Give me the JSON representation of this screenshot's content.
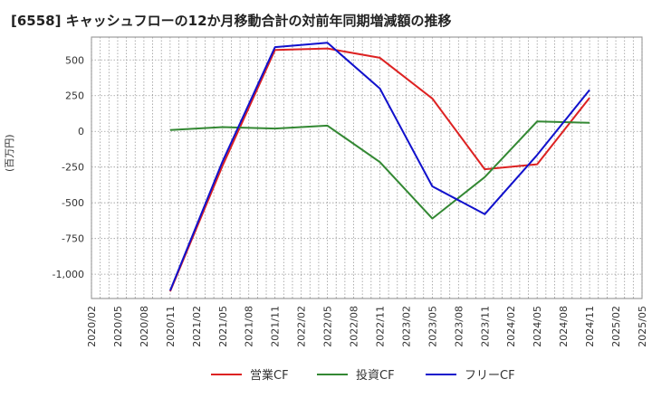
{
  "chart_data": {
    "type": "line",
    "title": "[6558]  キャッシュフローの12か月移動合計の対前年同期増減額の推移",
    "ylabel": "(百万円)",
    "xlabel": "",
    "grid": true,
    "legend": "bottom",
    "ylim": [
      -1170,
      660
    ],
    "yticks": [
      500,
      250,
      0,
      -250,
      -500,
      -750,
      -1000
    ],
    "ytick_labels": [
      "500",
      "250",
      "0",
      "-250",
      "-500",
      "-750",
      "-1,000"
    ],
    "x_categories": [
      "2020/02",
      "2020/05",
      "2020/08",
      "2020/11",
      "2021/02",
      "2021/05",
      "2021/08",
      "2021/11",
      "2022/02",
      "2022/05",
      "2022/08",
      "2022/11",
      "2023/02",
      "2023/05",
      "2023/08",
      "2023/11",
      "2024/02",
      "2024/05",
      "2024/08",
      "2024/11",
      "2025/02",
      "2025/05"
    ],
    "series": [
      {
        "name": "営業CF",
        "color": "#dd2222",
        "x": [
          "2020/11",
          "2021/05",
          "2021/11",
          "2022/05",
          "2022/11",
          "2023/05",
          "2023/11",
          "2024/05",
          "2024/11"
        ],
        "values": [
          -1120,
          -240,
          570,
          580,
          515,
          230,
          -265,
          -230,
          235
        ]
      },
      {
        "name": "投資CF",
        "color": "#338833",
        "x": [
          "2020/11",
          "2021/05",
          "2021/11",
          "2022/05",
          "2022/11",
          "2023/05",
          "2023/11",
          "2024/05",
          "2024/11"
        ],
        "values": [
          10,
          30,
          20,
          40,
          -215,
          -610,
          -320,
          70,
          60
        ]
      },
      {
        "name": "フリーCF",
        "color": "#1111cc",
        "x": [
          "2020/11",
          "2021/05",
          "2021/11",
          "2022/05",
          "2022/11",
          "2023/05",
          "2023/11",
          "2024/05",
          "2024/11"
        ],
        "values": [
          -1115,
          -210,
          590,
          620,
          300,
          -385,
          -580,
          -165,
          290
        ]
      }
    ]
  }
}
